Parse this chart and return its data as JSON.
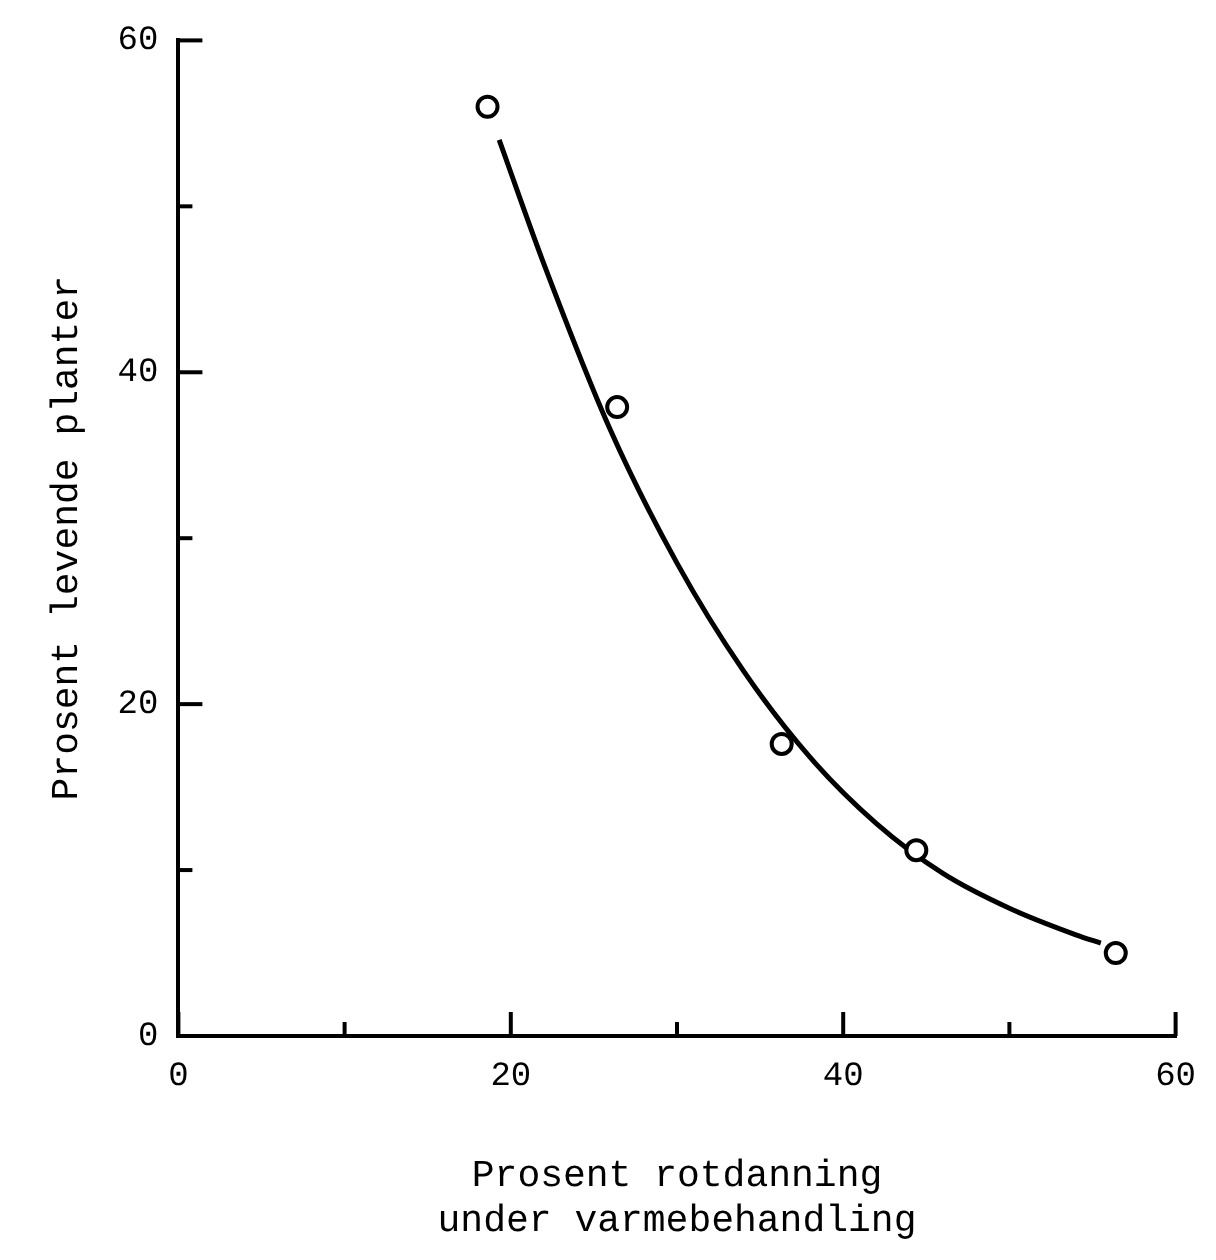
{
  "chart_data": {
    "type": "scatter",
    "xlabel": "Prosent rotdanning\nunder varmebehandling",
    "ylabel": "Prosent levende planter",
    "xlim": [
      0,
      60
    ],
    "xticks": [
      0,
      {
        "value": 10,
        "label": null
      },
      20,
      {
        "value": 30,
        "label": null
      },
      40,
      {
        "value": 50,
        "label": null
      },
      60
    ],
    "ylim": [
      0,
      60
    ],
    "yticks": [
      0,
      {
        "value": 10,
        "label": null
      },
      20,
      {
        "value": 30,
        "label": null
      },
      40,
      {
        "value": 50,
        "label": null
      },
      60
    ],
    "grid": false,
    "legend": false,
    "series": [
      {
        "type": "scatter",
        "color": "#000000",
        "marker": "circle",
        "x": [
          18.6,
          26.4,
          36.3,
          44.4,
          56.4
        ],
        "values": [
          56.0,
          37.9,
          17.6,
          11.2,
          5.0
        ]
      },
      {
        "type": "line",
        "color": "#000000",
        "marker": "none",
        "line_style": "solid",
        "x": [
          19.3,
          22,
          26,
          30,
          34,
          38,
          42,
          46,
          50,
          54,
          55.5
        ],
        "values": [
          54,
          46.5,
          36.5,
          28.5,
          22,
          16.8,
          12.8,
          9.8,
          7.7,
          6.1,
          5.6
        ]
      }
    ]
  }
}
